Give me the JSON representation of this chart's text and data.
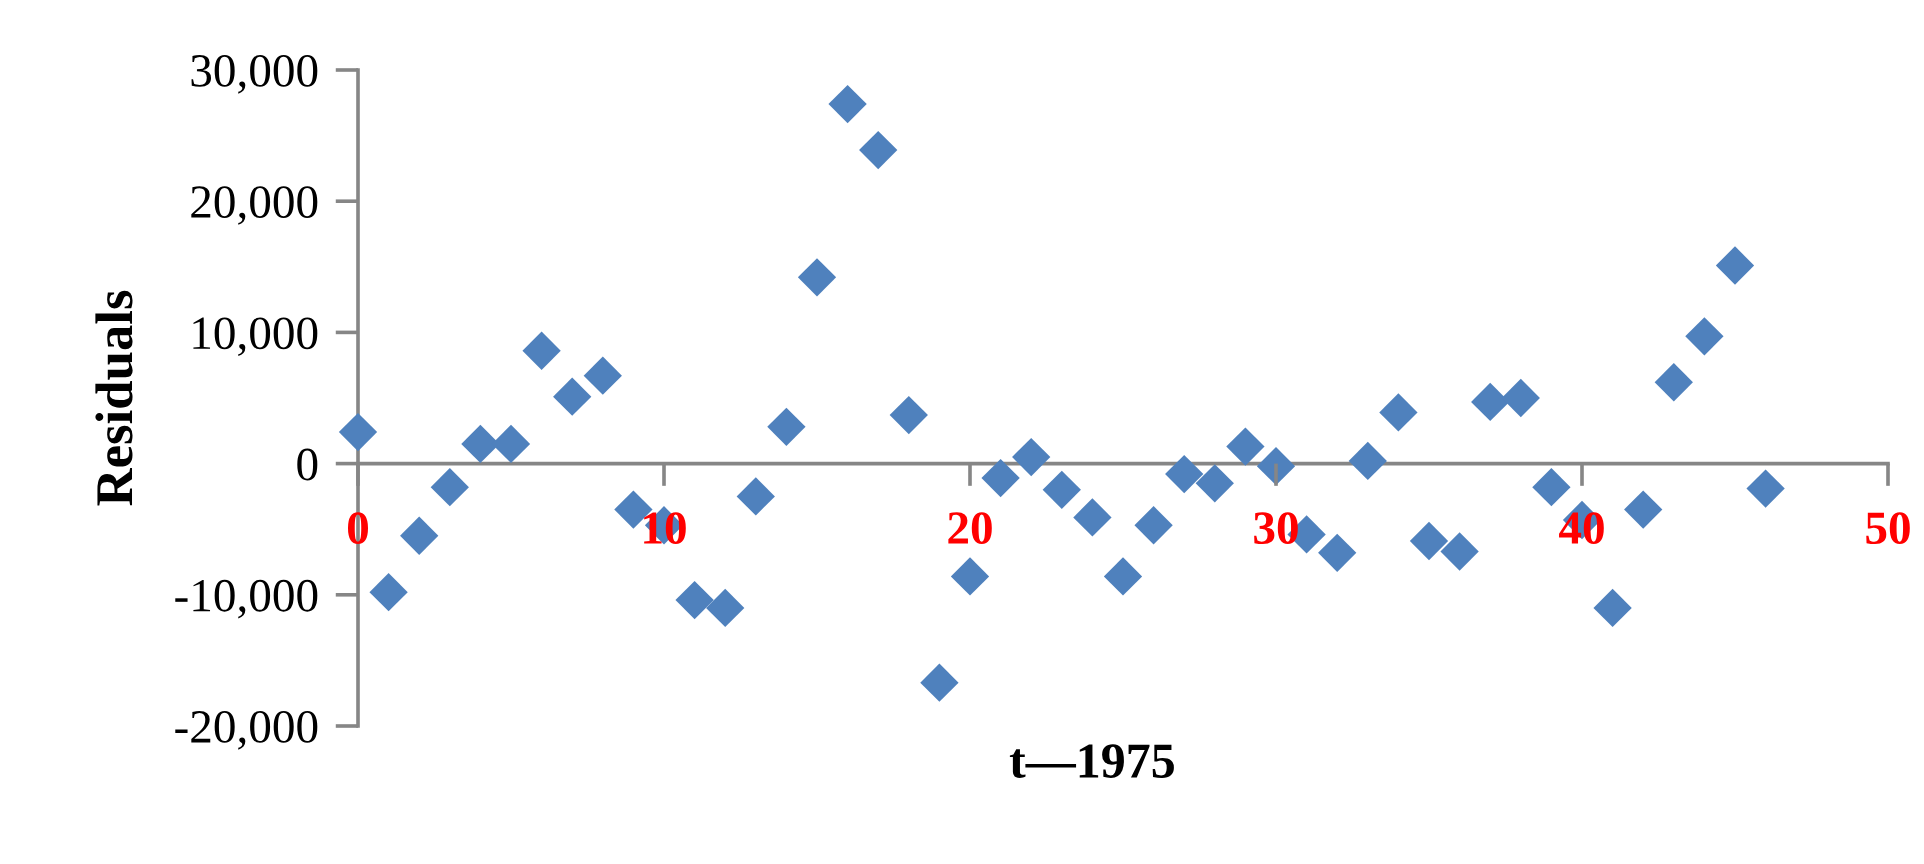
{
  "chart_data": {
    "type": "scatter",
    "xlabel": "t—1975",
    "ylabel": "Residuals",
    "marker": "diamond",
    "color": "#4f81bd",
    "x": [
      0,
      1,
      2,
      3,
      4,
      5,
      6,
      7,
      8,
      9,
      10,
      11,
      12,
      13,
      14,
      15,
      16,
      17,
      18,
      19,
      20,
      21,
      22,
      23,
      24,
      25,
      26,
      27,
      28,
      29,
      30,
      31,
      32,
      33,
      34,
      35,
      36,
      37,
      38,
      39,
      40,
      41,
      42,
      43,
      44,
      45,
      46
    ],
    "values": [
      2400,
      -9800,
      -5500,
      -1800,
      1500,
      1500,
      8600,
      5100,
      6700,
      -3500,
      -4700,
      -10400,
      -11000,
      -2500,
      2800,
      14200,
      27400,
      23900,
      3700,
      -16700,
      -8600,
      -1100,
      500,
      -2000,
      -4100,
      -8600,
      -4700,
      -800,
      -1500,
      1300,
      -200,
      -5400,
      -6800,
      200,
      3900,
      -5900,
      -6700,
      4700,
      5000,
      -1800,
      -4300,
      -11000,
      -3500,
      6200,
      9700,
      15100,
      -1900
    ],
    "xlim": [
      0,
      50
    ],
    "ylim": [
      -20000,
      30000
    ],
    "xticks": [
      0,
      10,
      20,
      30,
      40,
      50
    ],
    "yticks": [
      {
        "value": -20000,
        "label": "-20,000"
      },
      {
        "value": -10000,
        "label": "-10,000"
      },
      0,
      {
        "value": 10000,
        "label": "10,000"
      },
      {
        "value": 20000,
        "label": "20,000"
      },
      {
        "value": 30000,
        "label": "30,000"
      }
    ]
  }
}
